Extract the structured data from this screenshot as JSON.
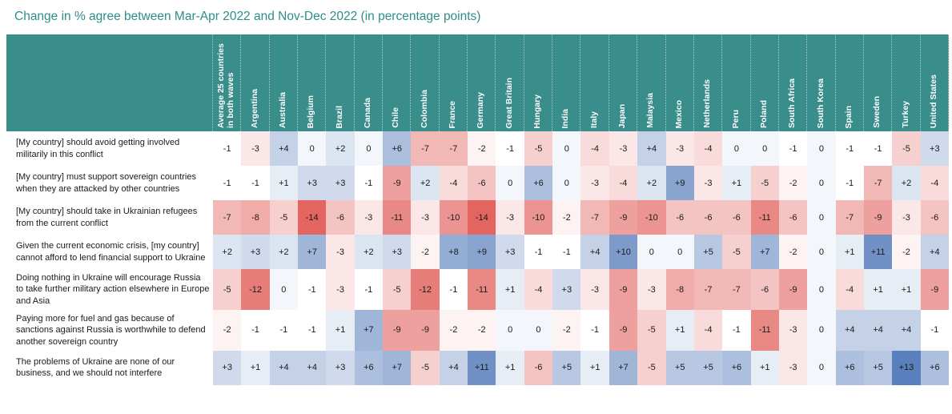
{
  "title": "Change in % agree between Mar-Apr 2022 and Nov-Dec 2022 (in percentage points)",
  "colors": {
    "title_text": "#2e8c8c",
    "header_background": "#398d8b",
    "header_text": "#ffffff",
    "positive_max": "#597fbc",
    "negative_max": "#e26560",
    "midpoint": "#ffffff",
    "cell_text": "#1a1a1a"
  },
  "chart_data": {
    "type": "heatmap",
    "title": "Change in % agree between Mar-Apr 2022 and Nov-Dec 2022 (in percentage points)",
    "unit": "percentage points",
    "legend_position": "none",
    "columns": [
      "Average 25 countries in both waves",
      "Argentina",
      "Australia",
      "Belgium",
      "Brazil",
      "Canada",
      "Chile",
      "Colombia",
      "France",
      "Germany",
      "Great Britain",
      "Hungary",
      "India",
      "Italy",
      "Japan",
      "Malaysia",
      "Mexico",
      "Netherlands",
      "Peru",
      "Poland",
      "South Africa",
      "South Korea",
      "Spain",
      "Sweden",
      "Turkey",
      "United States"
    ],
    "rows": [
      {
        "label": "[My country] should avoid getting involved militarily in this conflict",
        "values": [
          -1,
          -3,
          4,
          0,
          2,
          0,
          6,
          -7,
          -7,
          -2,
          -1,
          -5,
          0,
          -4,
          -3,
          4,
          -3,
          -4,
          0,
          0,
          -1,
          0,
          -1,
          -1,
          -5,
          3
        ]
      },
      {
        "label": "[My country] must support sovereign countries when they are attacked by other countries",
        "values": [
          -1,
          -1,
          1,
          3,
          3,
          -1,
          -9,
          2,
          -4,
          -6,
          0,
          6,
          0,
          -3,
          -4,
          2,
          9,
          -3,
          1,
          -5,
          -2,
          0,
          -1,
          -7,
          2,
          -4
        ]
      },
      {
        "label": "[My country] should take in Ukrainian refugees from the current conflict",
        "values": [
          -7,
          -8,
          -5,
          -14,
          -6,
          -3,
          -11,
          -3,
          -10,
          -14,
          -3,
          -10,
          -2,
          -7,
          -9,
          -10,
          -6,
          -6,
          -6,
          -11,
          -6,
          0,
          -7,
          -9,
          -3,
          -6
        ]
      },
      {
        "label": "Given the current economic crisis, [my country] cannot afford to lend financial support to Ukraine",
        "values": [
          2,
          3,
          2,
          7,
          -3,
          2,
          3,
          -2,
          8,
          9,
          3,
          -1,
          -1,
          4,
          10,
          0,
          0,
          5,
          -5,
          7,
          -2,
          0,
          1,
          11,
          -2,
          4
        ]
      },
      {
        "label": "Doing nothing in Ukraine will encourage Russia to take further military action elsewhere in Europe and Asia",
        "values": [
          -5,
          -12,
          0,
          -1,
          -3,
          -1,
          -5,
          -12,
          -1,
          -11,
          1,
          -4,
          3,
          -3,
          -9,
          -3,
          -8,
          -7,
          -7,
          -6,
          -9,
          0,
          -4,
          1,
          1,
          -9
        ]
      },
      {
        "label": "Paying more for fuel and gas because of sanctions against Russia is worthwhile to defend another sovereign country",
        "values": [
          -2,
          -1,
          -1,
          -1,
          1,
          7,
          -9,
          -9,
          -2,
          -2,
          0,
          0,
          -2,
          -1,
          -9,
          -5,
          1,
          -4,
          -1,
          -11,
          -3,
          0,
          4,
          4,
          4,
          -1
        ]
      },
      {
        "label": "The problems of Ukraine are none of our business, and we should not interfere",
        "values": [
          3,
          1,
          4,
          4,
          3,
          6,
          7,
          -5,
          4,
          11,
          1,
          -6,
          5,
          1,
          7,
          -5,
          5,
          5,
          6,
          1,
          -3,
          0,
          6,
          5,
          13,
          6
        ]
      }
    ],
    "color_scale": {
      "min": -14,
      "mid": -1,
      "max": 13,
      "negative_color": "#e26560",
      "midpoint_color": "#ffffff",
      "positive_color": "#597fbc"
    }
  }
}
